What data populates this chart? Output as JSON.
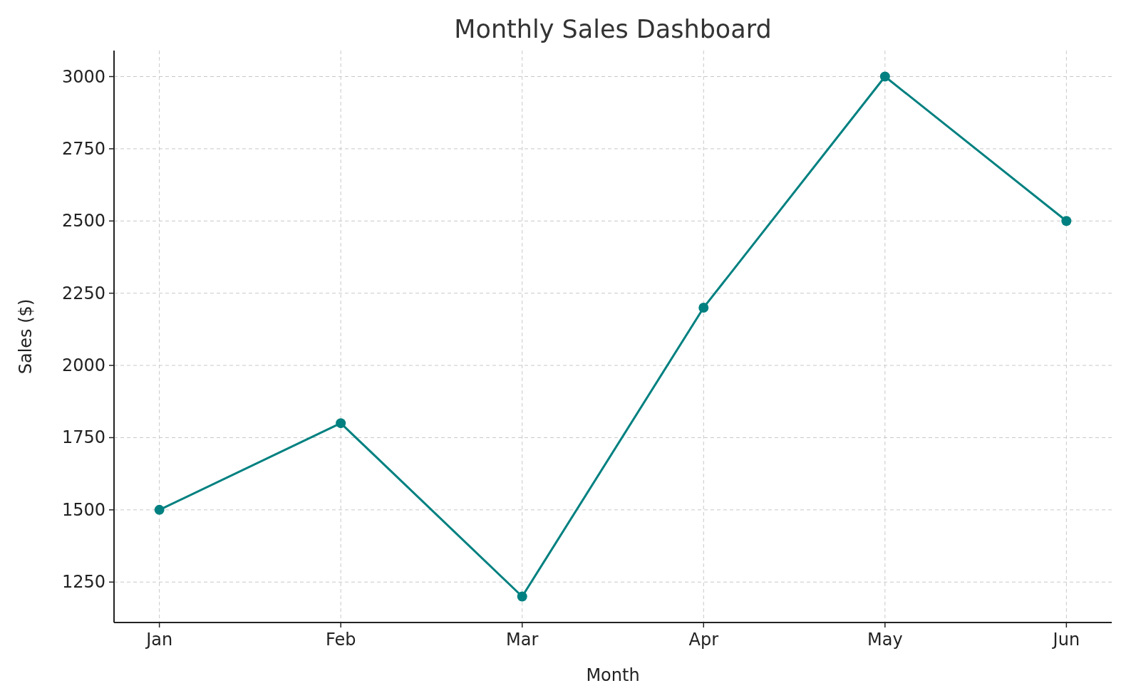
{
  "chart_data": {
    "type": "line",
    "title": "Monthly Sales Dashboard",
    "xlabel": "Month",
    "ylabel": "Sales ($)",
    "categories": [
      "Jan",
      "Feb",
      "Mar",
      "Apr",
      "May",
      "Jun"
    ],
    "series": [
      {
        "color": "#008080",
        "values": [
          1500,
          1800,
          1200,
          2200,
          3000,
          2500
        ]
      }
    ],
    "ylim": [
      1110,
      3090
    ],
    "yticks": [
      1250,
      1500,
      1750,
      2000,
      2250,
      2500,
      2750,
      3000
    ],
    "grid": true,
    "marker": "circle",
    "line_style": "solid"
  }
}
